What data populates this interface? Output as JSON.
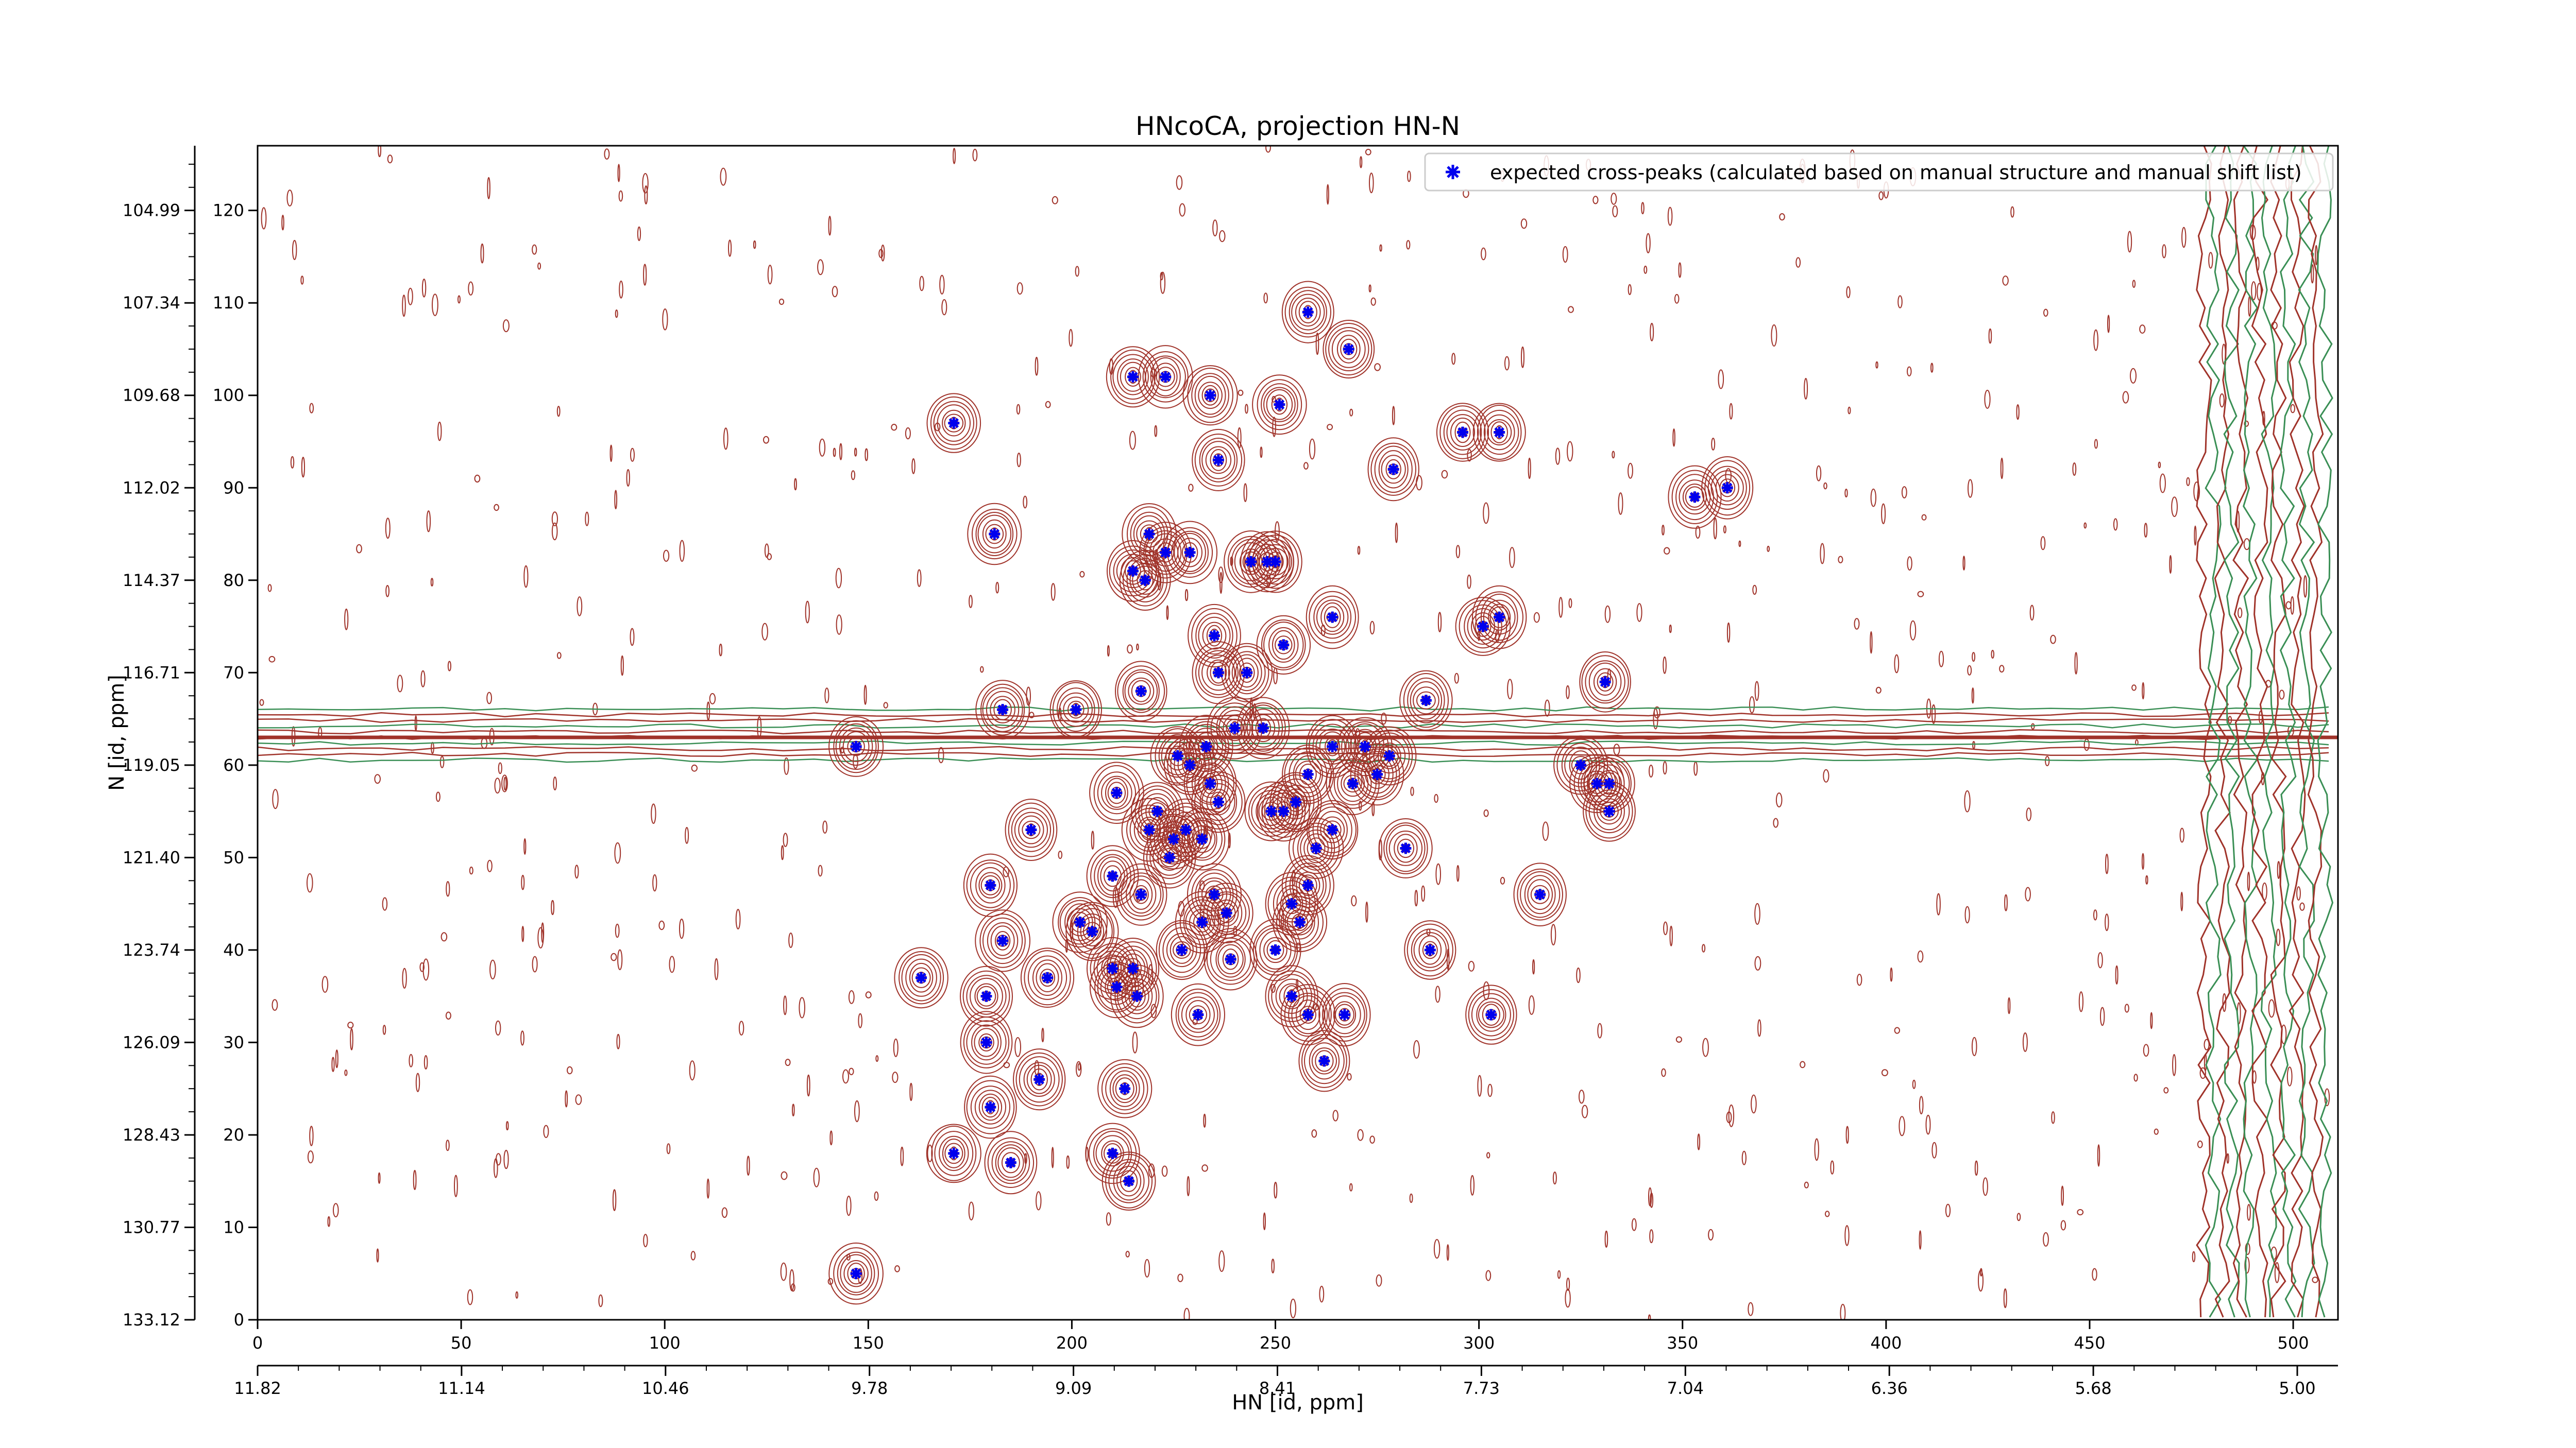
{
  "chart_data": {
    "type": "scatter",
    "title": "HNcoCA, projection HN-N",
    "xlabel": "HN [id, ppm]",
    "ylabel": "N [id, ppm]",
    "x_index_ticks": [
      "0",
      "50",
      "100",
      "150",
      "200",
      "250",
      "300",
      "350",
      "400",
      "450",
      "500"
    ],
    "x_ppm_ticks": [
      "11.82",
      "11.14",
      "10.46",
      "9.78",
      "9.09",
      "8.41",
      "7.73",
      "7.04",
      "6.36",
      "5.68",
      "5.00"
    ],
    "y_index_ticks": [
      "0",
      "10",
      "20",
      "30",
      "40",
      "50",
      "60",
      "70",
      "80",
      "90",
      "100",
      "110",
      "120"
    ],
    "y_ppm_ticks": [
      "133.12",
      "130.77",
      "128.43",
      "126.09",
      "123.74",
      "121.40",
      "119.05",
      "116.71",
      "114.37",
      "112.02",
      "109.68",
      "107.34",
      "104.99"
    ],
    "xlim": [
      0,
      511
    ],
    "ylim": [
      0,
      127
    ],
    "legend": {
      "label": "expected cross-peaks (calculated based on manual structure and manual shift list)",
      "placement": "top-right"
    },
    "colors": {
      "contour_positive": "#a0332a",
      "contour_negative": "#3a8f55",
      "marker": "#0000ee"
    },
    "series": [
      {
        "name": "expected cross-peaks (calculated based on manual structure and manual shift list)",
        "points": [
          [
            147,
            5
          ],
          [
            171,
            18
          ],
          [
            185,
            17
          ],
          [
            180,
            23
          ],
          [
            179,
            30
          ],
          [
            179,
            35
          ],
          [
            163,
            37
          ],
          [
            183,
            41
          ],
          [
            194,
            37
          ],
          [
            192,
            26
          ],
          [
            210,
            18
          ],
          [
            214,
            15
          ],
          [
            213,
            25
          ],
          [
            180,
            47
          ],
          [
            190,
            53
          ],
          [
            183,
            66
          ],
          [
            201,
            66
          ],
          [
            202,
            43
          ],
          [
            205,
            42
          ],
          [
            210,
            38
          ],
          [
            211,
            36
          ],
          [
            215,
            38
          ],
          [
            216,
            35
          ],
          [
            210,
            48
          ],
          [
            217,
            46
          ],
          [
            211,
            57
          ],
          [
            217,
            68
          ],
          [
            219,
            53
          ],
          [
            221,
            55
          ],
          [
            224,
            50
          ],
          [
            226,
            61
          ],
          [
            225,
            52
          ],
          [
            228,
            53
          ],
          [
            232,
            52
          ],
          [
            234,
            58
          ],
          [
            236,
            56
          ],
          [
            229,
            60
          ],
          [
            233,
            62
          ],
          [
            235,
            46
          ],
          [
            227,
            40
          ],
          [
            232,
            43
          ],
          [
            238,
            44
          ],
          [
            239,
            39
          ],
          [
            231,
            33
          ],
          [
            250,
            40
          ],
          [
            254,
            45
          ],
          [
            256,
            43
          ],
          [
            258,
            47
          ],
          [
            249,
            55
          ],
          [
            252,
            55
          ],
          [
            260,
            51
          ],
          [
            255,
            56
          ],
          [
            258,
            59
          ],
          [
            264,
            62
          ],
          [
            269,
            58
          ],
          [
            272,
            62
          ],
          [
            275,
            59
          ],
          [
            278,
            61
          ],
          [
            264,
            53
          ],
          [
            254,
            35
          ],
          [
            258,
            33
          ],
          [
            262,
            28
          ],
          [
            267,
            33
          ],
          [
            288,
            40
          ],
          [
            282,
            51
          ],
          [
            287,
            67
          ],
          [
            303,
            33
          ],
          [
            315,
            46
          ],
          [
            325,
            60
          ],
          [
            329,
            58
          ],
          [
            332,
            58
          ],
          [
            332,
            55
          ],
          [
            331,
            69
          ],
          [
            301,
            75
          ],
          [
            305,
            76
          ],
          [
            296,
            96
          ],
          [
            305,
            96
          ],
          [
            279,
            92
          ],
          [
            264,
            76
          ],
          [
            252,
            73
          ],
          [
            247,
            64
          ],
          [
            240,
            64
          ],
          [
            243,
            70
          ],
          [
            236,
            70
          ],
          [
            235,
            74
          ],
          [
            244,
            82
          ],
          [
            248,
            82
          ],
          [
            250,
            82
          ],
          [
            229,
            83
          ],
          [
            223,
            83
          ],
          [
            218,
            80
          ],
          [
            215,
            81
          ],
          [
            219,
            85
          ],
          [
            223,
            102
          ],
          [
            234,
            100
          ],
          [
            236,
            93
          ],
          [
            251,
            99
          ],
          [
            258,
            109
          ],
          [
            268,
            105
          ],
          [
            215,
            102
          ],
          [
            171,
            97
          ],
          [
            181,
            85
          ],
          [
            147,
            62
          ],
          [
            353,
            89
          ],
          [
            361,
            90
          ]
        ]
      }
    ]
  }
}
